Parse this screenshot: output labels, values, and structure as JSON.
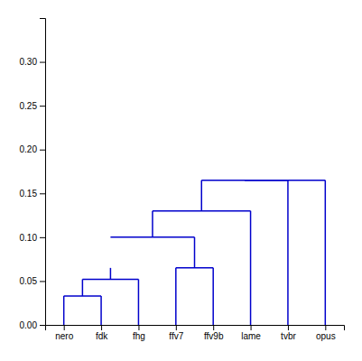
{
  "chart_data": {
    "type": "dendrogram",
    "xlim": [
      0.5,
      8.5
    ],
    "xticks": [
      {
        "value": 1,
        "label": "nero"
      },
      {
        "value": 2,
        "label": "fdk"
      },
      {
        "value": 3,
        "label": "fhg"
      },
      {
        "value": 4,
        "label": "ffv7"
      },
      {
        "value": 5,
        "label": "ffv9b"
      },
      {
        "value": 6,
        "label": "lame"
      },
      {
        "value": 7,
        "label": "tvbr"
      },
      {
        "value": 8,
        "label": "opus"
      }
    ],
    "ylim": [
      0,
      0.35
    ],
    "yticks": [
      {
        "value": 0,
        "label": "0.00"
      },
      0.05,
      {
        "value": 0.1,
        "label": "0.10"
      },
      0.15,
      {
        "value": 0.2,
        "label": "0.20"
      },
      0.25,
      {
        "value": 0.3,
        "label": "0.30"
      }
    ],
    "color": "#0000cc",
    "segments": [
      {
        "x": [
          1,
          1
        ],
        "values": [
          0,
          0.033
        ]
      },
      {
        "x": [
          2,
          2
        ],
        "values": [
          0,
          0.033
        ]
      },
      {
        "x": [
          1,
          2
        ],
        "values": [
          0.033,
          0.033
        ]
      },
      {
        "x": [
          1.5,
          1.5
        ],
        "values": [
          0.033,
          0.052
        ]
      },
      {
        "x": [
          3,
          3
        ],
        "values": [
          0,
          0.052
        ]
      },
      {
        "x": [
          1.5,
          3
        ],
        "values": [
          0.052,
          0.052
        ]
      },
      {
        "x": [
          2.25,
          2.25
        ],
        "values": [
          0.052,
          0.065
        ]
      },
      {
        "x": [
          4,
          4
        ],
        "values": [
          0,
          0.065
        ]
      },
      {
        "x": [
          5,
          5
        ],
        "values": [
          0,
          0.065
        ]
      },
      {
        "x": [
          4,
          5
        ],
        "values": [
          0.065,
          0.065
        ]
      },
      {
        "x": [
          4.5,
          4.5
        ],
        "values": [
          0.065,
          0.1
        ]
      },
      {
        "x": [
          2.25,
          4.5
        ],
        "values": [
          0.1,
          0.1
        ]
      },
      {
        "x": [
          3.375,
          3.375
        ],
        "values": [
          0.1,
          0.13
        ]
      },
      {
        "x": [
          6,
          6
        ],
        "values": [
          0,
          0.13
        ]
      },
      {
        "x": [
          3.375,
          6
        ],
        "values": [
          0.13,
          0.13
        ]
      },
      {
        "x": [
          4.6875,
          4.6875
        ],
        "values": [
          0.13,
          0.165
        ]
      },
      {
        "x": [
          7,
          7
        ],
        "values": [
          0,
          0.165
        ]
      },
      {
        "x": [
          4.6875,
          7
        ],
        "values": [
          0.165,
          0.165
        ]
      },
      {
        "x": [
          5.84375,
          5.84375
        ],
        "values": [
          0.165,
          0.165
        ]
      },
      {
        "x": [
          8,
          8
        ],
        "values": [
          0,
          0.165
        ]
      },
      {
        "x": [
          5.84375,
          8
        ],
        "values": [
          0.165,
          0.165
        ]
      }
    ]
  }
}
